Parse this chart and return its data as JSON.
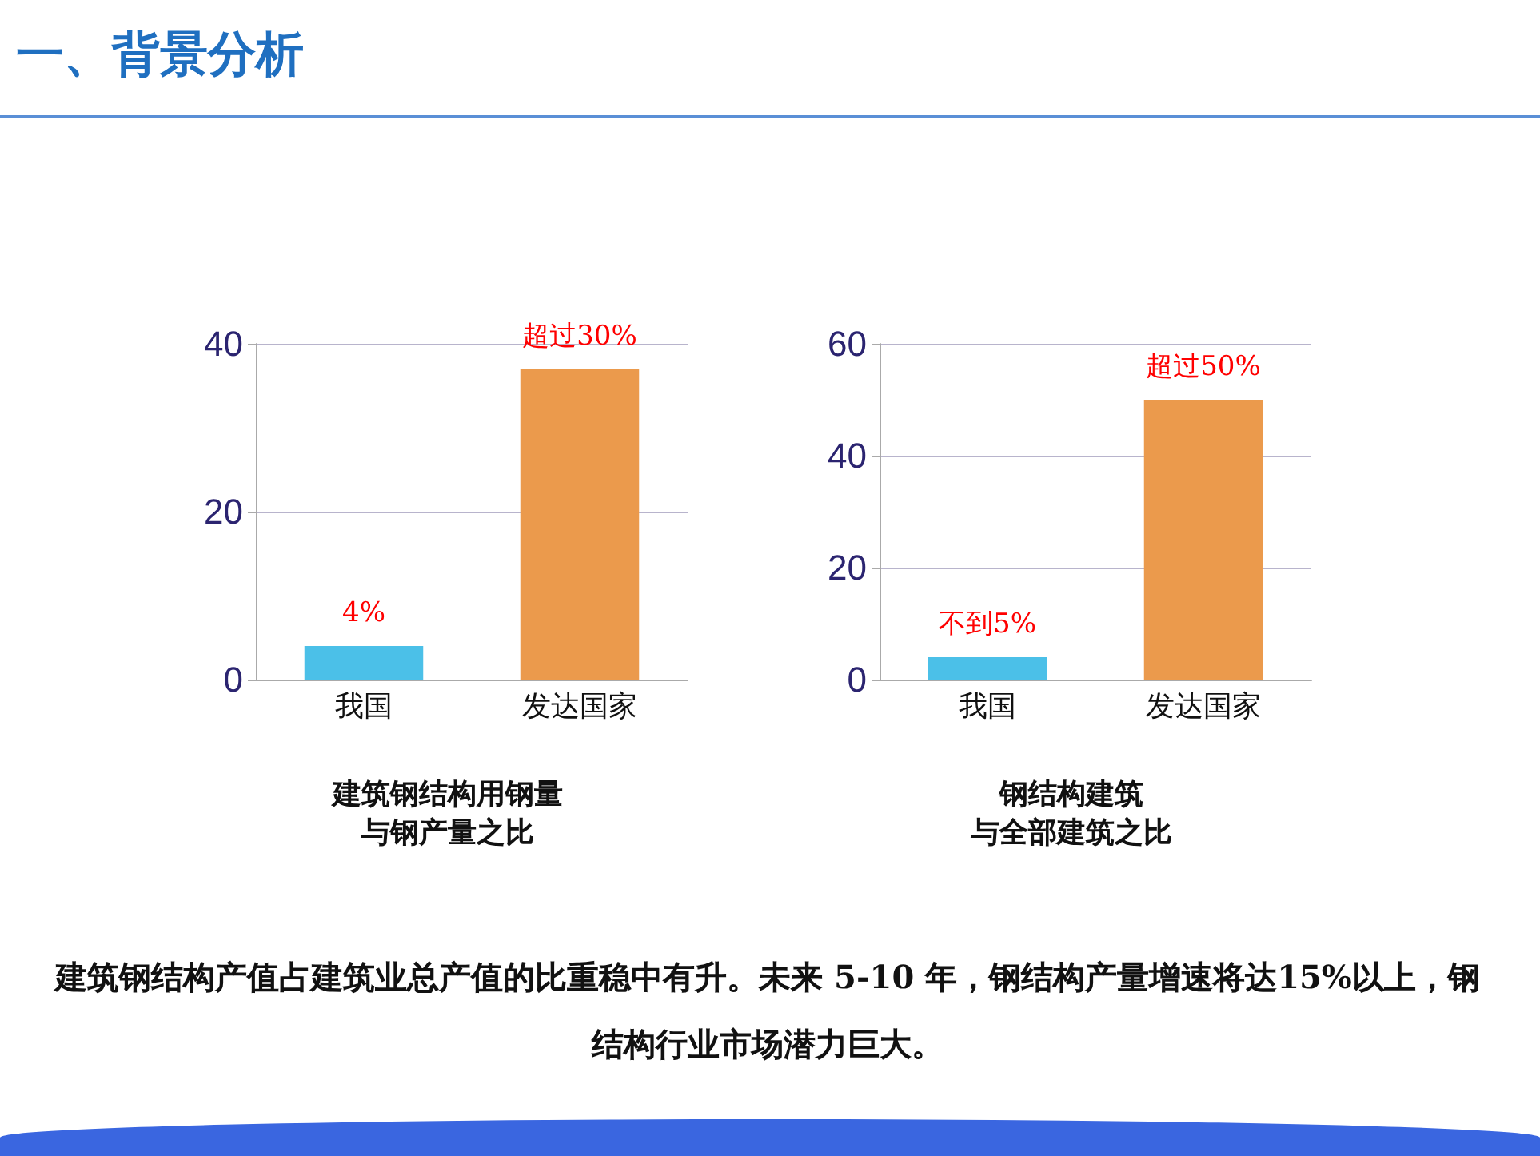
{
  "chart_data": [
    {
      "type": "bar",
      "title": "建筑钢结构用钢量",
      "subtitle": "与钢产量之比",
      "annotations": [
        "一、背景分析",
        "建筑钢结构产值占建筑业总产值的比重稳中有升。未来 5-10 年，钢结构产量增速将达15%以上，钢结构行业市场潜力巨大。"
      ],
      "categories": [
        "我国",
        "发达国家"
      ],
      "values": [
        4,
        37
      ],
      "colors": [
        "#4bc0e8",
        "#eb9a4c"
      ],
      "value_labels": [
        "4%",
        "超过30%"
      ],
      "ylim": [
        0,
        40
      ],
      "yticks": [
        0,
        20,
        40
      ],
      "grid": "y"
    },
    {
      "type": "bar",
      "title": "钢结构建筑",
      "subtitle": "与全部建筑之比",
      "categories": [
        "我国",
        "发达国家"
      ],
      "values": [
        4,
        50
      ],
      "colors": [
        "#4bc0e8",
        "#eb9a4c"
      ],
      "value_labels": [
        "不到5%",
        "超过50%"
      ],
      "ylim": [
        0,
        60
      ],
      "yticks": [
        0,
        20,
        40,
        60
      ],
      "grid": "y"
    }
  ]
}
